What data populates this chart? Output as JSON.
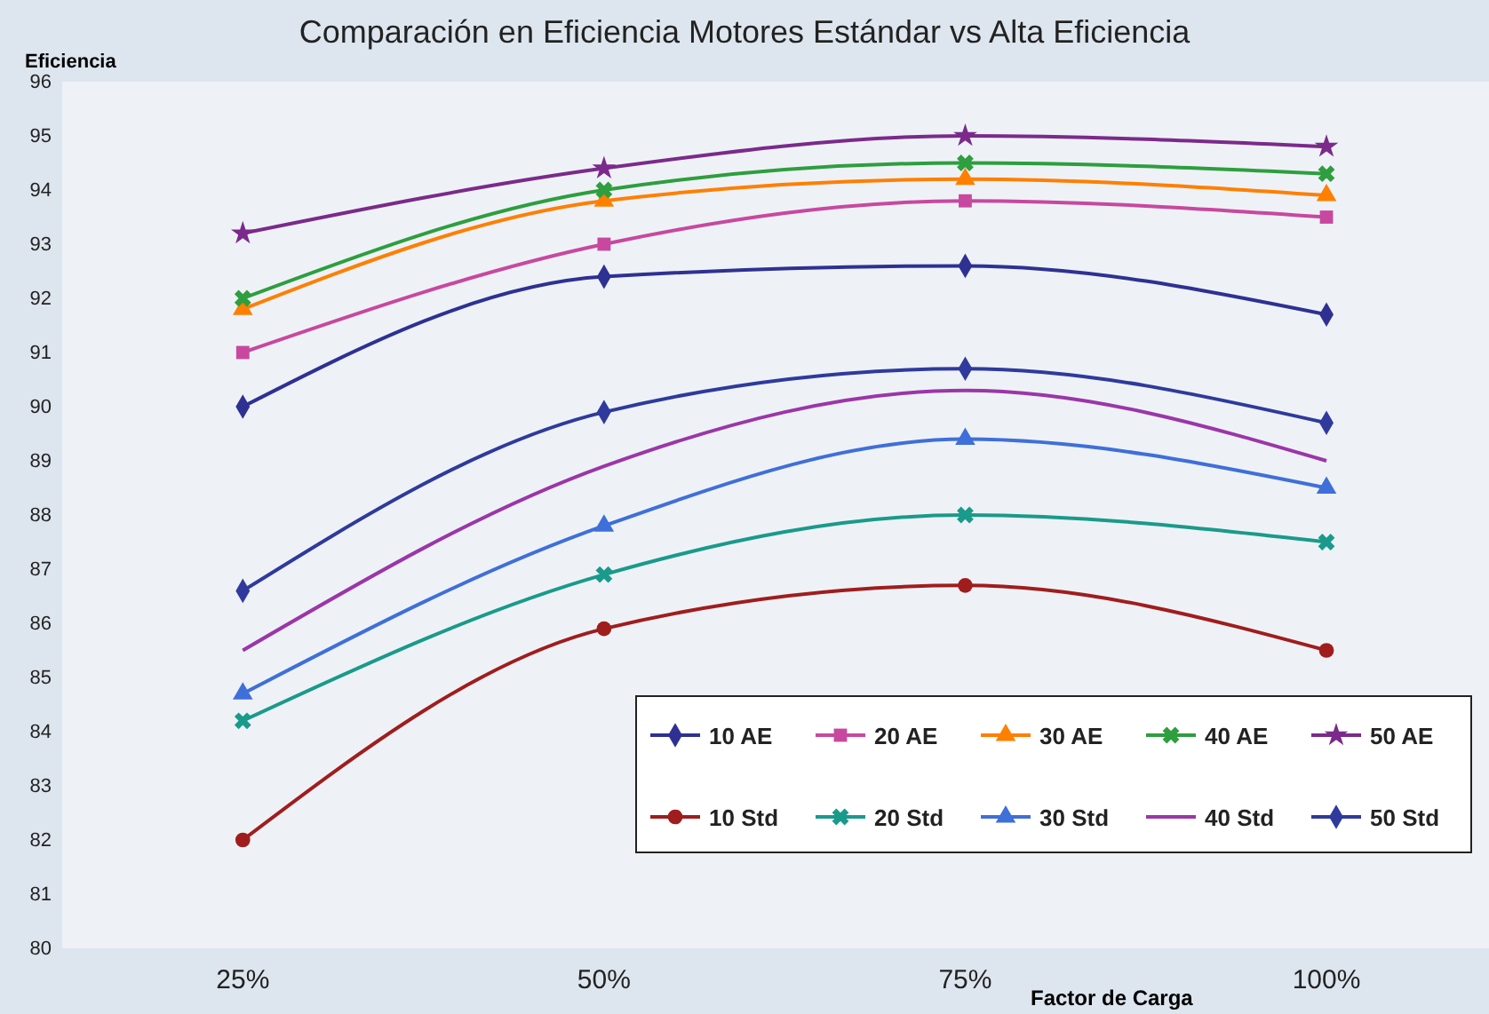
{
  "chart_data": {
    "type": "line",
    "title": "Comparación en Eficiencia Motores Estándar vs Alta Eficiencia",
    "xlabel": "Factor de Carga",
    "ylabel": "Eficiencia",
    "categories": [
      "25%",
      "50%",
      "75%",
      "100%"
    ],
    "ylim": [
      80,
      96
    ],
    "yticks": [
      80,
      81,
      82,
      83,
      84,
      85,
      86,
      87,
      88,
      89,
      90,
      91,
      92,
      93,
      94,
      95,
      96
    ],
    "legend": "bottom right",
    "line_style": "solid",
    "series": [
      {
        "name": "10 AE",
        "color": "#2e3192",
        "marker": "diamond",
        "values": [
          90.0,
          92.4,
          92.6,
          91.7
        ]
      },
      {
        "name": "20 AE",
        "color": "#c8489f",
        "marker": "square",
        "values": [
          91.0,
          93.0,
          93.8,
          93.5
        ]
      },
      {
        "name": "30 AE",
        "color": "#ff7f00",
        "marker": "triangle",
        "values": [
          91.8,
          93.8,
          94.2,
          93.9
        ]
      },
      {
        "name": "40 AE",
        "color": "#2e9e3e",
        "marker": "cross",
        "values": [
          92.0,
          94.0,
          94.5,
          94.3
        ]
      },
      {
        "name": "50 AE",
        "color": "#7b2a8b",
        "marker": "star",
        "values": [
          93.2,
          94.4,
          95.0,
          94.8
        ]
      },
      {
        "name": "10 Std",
        "color": "#a01d1d",
        "marker": "circle",
        "values": [
          82.0,
          85.9,
          86.7,
          85.5
        ]
      },
      {
        "name": "20 Std",
        "color": "#1a9a8a",
        "marker": "cross",
        "values": [
          84.2,
          86.9,
          88.0,
          87.5
        ]
      },
      {
        "name": "30 Std",
        "color": "#3f6fd8",
        "marker": "triangle",
        "values": [
          84.7,
          87.8,
          89.4,
          88.5
        ]
      },
      {
        "name": "40 Std",
        "color": "#9b36a8",
        "marker": "none",
        "values": [
          85.5,
          88.9,
          90.3,
          89.0
        ]
      },
      {
        "name": "50 Std",
        "color": "#2f3a9c",
        "marker": "diamond",
        "values": [
          86.6,
          89.9,
          90.7,
          89.7
        ]
      }
    ]
  }
}
